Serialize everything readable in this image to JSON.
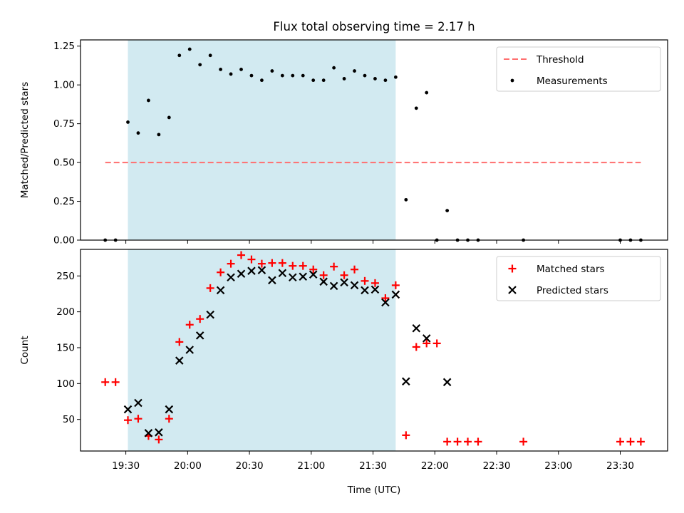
{
  "figure": {
    "title": "Flux total observing time = 2.17 h",
    "xlabel": "Time (UTC)",
    "x_ticks": [
      "19:30",
      "20:00",
      "20:30",
      "21:00",
      "21:30",
      "22:00",
      "22:30",
      "23:00",
      "23:30"
    ]
  },
  "colors": {
    "shade": "#add8e6",
    "threshold": "#ff6f6f",
    "measurement": "#000000",
    "matched": "#ff0000",
    "predicted": "#000000"
  },
  "chart_data": [
    {
      "type": "scatter",
      "ylabel": "Matched/Predicted stars",
      "ylim": [
        0,
        1.29
      ],
      "xlim": [
        "19:08",
        "23:53"
      ],
      "y_ticks": [
        "0.00",
        "0.25",
        "0.50",
        "0.75",
        "1.00",
        "1.25"
      ],
      "shaded_span": [
        "19:31",
        "21:41"
      ],
      "legend": {
        "placement": "upper right",
        "entries": [
          "Threshold",
          "Measurements"
        ]
      },
      "threshold": {
        "name": "Threshold",
        "value": 0.5,
        "x_range": [
          "19:20",
          "23:40"
        ]
      },
      "series": [
        {
          "name": "Measurements",
          "x": [
            "19:20",
            "19:25",
            "19:31",
            "19:36",
            "19:41",
            "19:46",
            "19:51",
            "19:56",
            "20:01",
            "20:06",
            "20:11",
            "20:16",
            "20:21",
            "20:26",
            "20:31",
            "20:36",
            "20:41",
            "20:46",
            "20:51",
            "20:56",
            "21:01",
            "21:06",
            "21:11",
            "21:16",
            "21:21",
            "21:26",
            "21:31",
            "21:36",
            "21:41",
            "21:46",
            "21:51",
            "21:56",
            "22:01",
            "22:06",
            "22:11",
            "22:16",
            "22:21",
            "22:43",
            "23:30",
            "23:35",
            "23:40"
          ],
          "y": [
            0.0,
            0.0,
            0.76,
            0.69,
            0.9,
            0.68,
            0.79,
            1.19,
            1.23,
            1.13,
            1.19,
            1.1,
            1.07,
            1.1,
            1.06,
            1.03,
            1.09,
            1.06,
            1.06,
            1.06,
            1.03,
            1.03,
            1.11,
            1.04,
            1.09,
            1.06,
            1.04,
            1.03,
            1.05,
            0.26,
            0.85,
            0.95,
            0.0,
            0.19,
            0.0,
            0.0,
            0.0,
            0.0,
            0.0,
            0.0,
            0.0
          ]
        }
      ]
    },
    {
      "type": "scatter",
      "ylabel": "Count",
      "ylim": [
        6,
        287
      ],
      "xlim": [
        "19:08",
        "23:53"
      ],
      "y_ticks": [
        "50",
        "100",
        "150",
        "200",
        "250"
      ],
      "shaded_span": [
        "19:31",
        "21:41"
      ],
      "legend": {
        "placement": "upper right",
        "entries": [
          "Matched stars",
          "Predicted stars"
        ]
      },
      "series": [
        {
          "name": "Matched stars",
          "marker": "plus",
          "x": [
            "19:20",
            "19:25",
            "19:31",
            "19:36",
            "19:41",
            "19:46",
            "19:51",
            "19:56",
            "20:01",
            "20:06",
            "20:11",
            "20:16",
            "20:21",
            "20:26",
            "20:31",
            "20:36",
            "20:41",
            "20:46",
            "20:51",
            "20:56",
            "21:01",
            "21:06",
            "21:11",
            "21:16",
            "21:21",
            "21:26",
            "21:31",
            "21:36",
            "21:41",
            "21:46",
            "21:51",
            "21:56",
            "22:01",
            "22:06",
            "22:11",
            "22:16",
            "22:21",
            "22:43",
            "23:30",
            "23:35",
            "23:40"
          ],
          "y": [
            102,
            102,
            49,
            51,
            27,
            22,
            51,
            158,
            182,
            190,
            233,
            255,
            267,
            279,
            273,
            267,
            268,
            268,
            264,
            264,
            259,
            251,
            263,
            251,
            259,
            243,
            240,
            219,
            237,
            28,
            151,
            156,
            156,
            19,
            19,
            19,
            19,
            19,
            19,
            19,
            19
          ]
        },
        {
          "name": "Predicted stars",
          "marker": "x",
          "x": [
            "19:31",
            "19:36",
            "19:41",
            "19:46",
            "19:51",
            "19:56",
            "20:01",
            "20:06",
            "20:11",
            "20:16",
            "20:21",
            "20:26",
            "20:31",
            "20:36",
            "20:41",
            "20:46",
            "20:51",
            "20:56",
            "21:01",
            "21:06",
            "21:11",
            "21:16",
            "21:21",
            "21:26",
            "21:31",
            "21:36",
            "21:41",
            "21:46",
            "21:51",
            "21:56",
            "22:06"
          ],
          "y": [
            64,
            73,
            31,
            32,
            64,
            132,
            147,
            167,
            196,
            230,
            248,
            253,
            257,
            258,
            244,
            254,
            248,
            249,
            252,
            242,
            236,
            241,
            237,
            230,
            231,
            213,
            224,
            103,
            177,
            163,
            102
          ]
        }
      ]
    }
  ]
}
